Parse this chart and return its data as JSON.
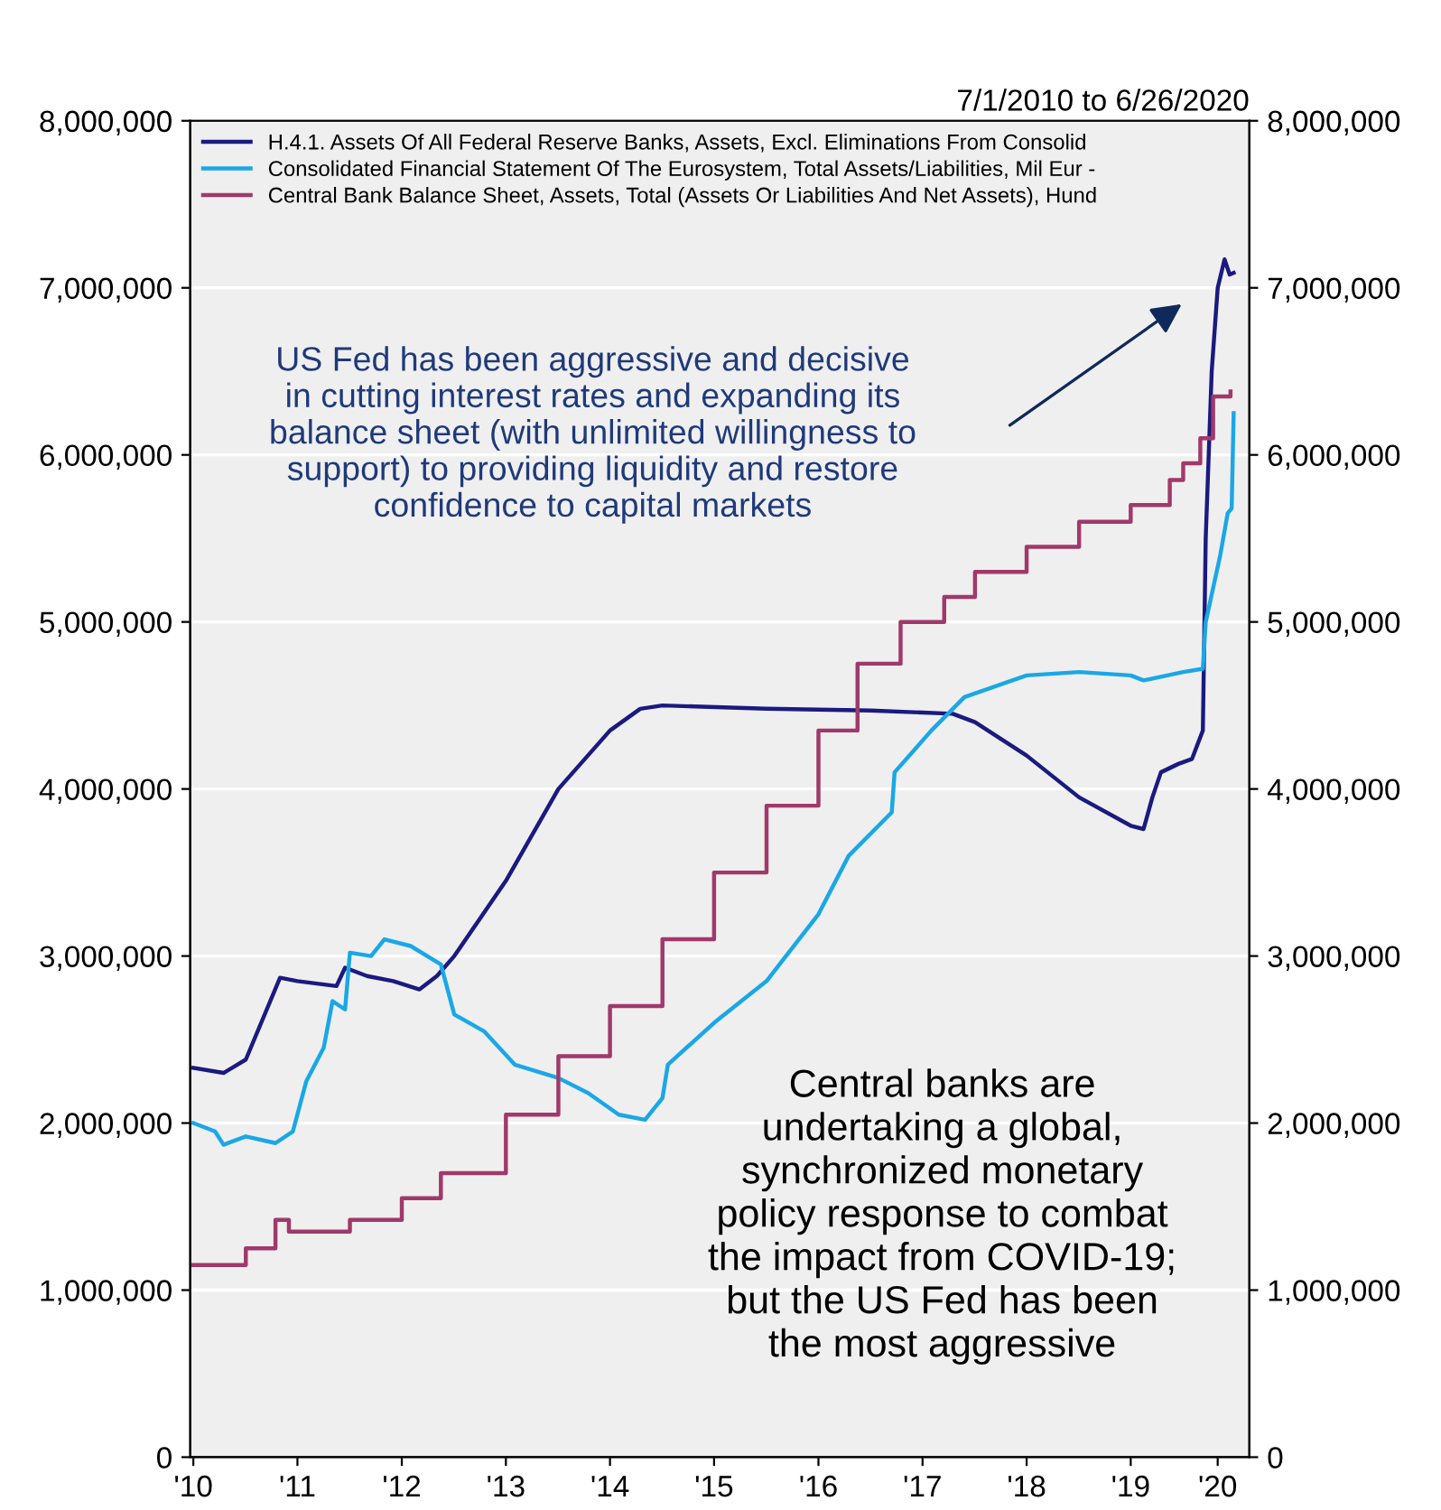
{
  "chart_data": {
    "type": "line",
    "annotations": [
      "7/1/2010 to 6/26/2020",
      "US Fed has been aggressive and decisive\nin cutting interest rates and expanding its\nbalance sheet (with unlimited willingness to\nsupport) to providing liquidity and restore\nconfidence to capital markets",
      "Central banks are\nundertaking a global,\nsynchronized monetary\npolicy response to combat\nthe impact from COVID-19;\nbut the US Fed has been\nthe most aggressive"
    ],
    "series": [
      {
        "name": "H.4.1. Assets Of All Federal Reserve Banks, Assets, Excl. Eliminations From Consolid",
        "color": "#1a1a80",
        "x": [
          "2010-07-01",
          "2010-10-15",
          "2011-01-01",
          "2011-05-01",
          "2011-07-01",
          "2011-11-15",
          "2011-12-15",
          "2012-03-01",
          "2012-06-01",
          "2012-09-01",
          "2012-11-01",
          "2013-01-01",
          "2013-07-01",
          "2014-01-01",
          "2014-07-01",
          "2014-10-15",
          "2015-01-01",
          "2016-01-01",
          "2017-01-01",
          "2017-10-15",
          "2018-01-01",
          "2018-07-01",
          "2019-01-01",
          "2019-07-01",
          "2019-08-15",
          "2019-09-15",
          "2019-10-15",
          "2019-12-15",
          "2020-02-01",
          "2020-03-10",
          "2020-03-20",
          "2020-04-10",
          "2020-05-01",
          "2020-05-25",
          "2020-06-12",
          "2020-06-26"
        ],
        "values": [
          2330000,
          2300000,
          2380000,
          2870000,
          2850000,
          2820000,
          2930000,
          2880000,
          2850000,
          2800000,
          2880000,
          3000000,
          3450000,
          4000000,
          4350000,
          4480000,
          4500000,
          4480000,
          4470000,
          4450000,
          4400000,
          4200000,
          3950000,
          3780000,
          3760000,
          3950000,
          4100000,
          4150000,
          4180000,
          4350000,
          5500000,
          6500000,
          7000000,
          7170000,
          7080000,
          7090000
        ]
      },
      {
        "name": "Consolidated Financial Statement Of The Eurosystem, Total Assets/Liabilities, Mil Eur -",
        "color": "#1aa7e6",
        "x": [
          "2010-07-01",
          "2010-09-15",
          "2010-10-15",
          "2011-01-01",
          "2011-04-15",
          "2011-06-15",
          "2011-08-01",
          "2011-10-01",
          "2011-11-01",
          "2011-12-15",
          "2012-01-01",
          "2012-03-15",
          "2012-05-01",
          "2012-08-01",
          "2012-11-15",
          "2013-01-01",
          "2013-04-15",
          "2013-08-01",
          "2014-01-01",
          "2014-04-15",
          "2014-08-01",
          "2014-11-01",
          "2015-01-01",
          "2015-01-20",
          "2015-07-01",
          "2016-01-01",
          "2016-07-01",
          "2016-10-15",
          "2017-03-15",
          "2017-03-25",
          "2017-08-01",
          "2017-11-25",
          "2018-07-01",
          "2019-01-01",
          "2019-07-01",
          "2019-08-15",
          "2020-01-01",
          "2020-03-10",
          "2020-03-20",
          "2020-05-10",
          "2020-06-05",
          "2020-06-19",
          "2020-06-26"
        ],
        "values": [
          2000000,
          1950000,
          1870000,
          1920000,
          1880000,
          1950000,
          2250000,
          2450000,
          2730000,
          2680000,
          3020000,
          3000000,
          3100000,
          3060000,
          2950000,
          2650000,
          2550000,
          2350000,
          2270000,
          2180000,
          2050000,
          2020000,
          2150000,
          2350000,
          2600000,
          2850000,
          3250000,
          3600000,
          3860000,
          4100000,
          4350000,
          4550000,
          4680000,
          4700000,
          4680000,
          4650000,
          4700000,
          4720000,
          5000000,
          5400000,
          5650000,
          5680000,
          6250000
        ]
      },
      {
        "name": "Central Bank Balance Sheet, Assets, Total (Assets Or Liabilities And Net Assets), Hund",
        "color": "#a0396a",
        "type": "step",
        "x": [
          "2010-07-01",
          "2011-01-01",
          "2011-04-15",
          "2011-06-01",
          "2012-01-01",
          "2012-07-01",
          "2012-11-15",
          "2013-07-01",
          "2014-01-01",
          "2014-07-01",
          "2015-01-01",
          "2015-07-01",
          "2016-01-01",
          "2016-07-01",
          "2016-11-15",
          "2017-04-15",
          "2017-09-15",
          "2018-01-01",
          "2018-07-01",
          "2019-01-01",
          "2019-07-01",
          "2019-11-15",
          "2020-01-01",
          "2020-03-01",
          "2020-04-15",
          "2020-06-15"
        ],
        "values": [
          1150000,
          1250000,
          1420000,
          1350000,
          1420000,
          1550000,
          1700000,
          2050000,
          2400000,
          2700000,
          3100000,
          3500000,
          3900000,
          4350000,
          4750000,
          5000000,
          5150000,
          5300000,
          5450000,
          5600000,
          5700000,
          5850000,
          5950000,
          6100000,
          6350000,
          6380000
        ]
      }
    ],
    "xlim": [
      "2010-06-20",
      "2020-08-20"
    ],
    "xticks": [
      {
        "value": "2010-07-01",
        "label": "'10"
      },
      {
        "value": "2011-07-01",
        "label": "'11"
      },
      {
        "value": "2012-07-01",
        "label": "'12"
      },
      {
        "value": "2013-07-01",
        "label": "'13"
      },
      {
        "value": "2014-07-01",
        "label": "'14"
      },
      {
        "value": "2015-07-01",
        "label": "'15"
      },
      {
        "value": "2016-07-01",
        "label": "'16"
      },
      {
        "value": "2017-07-01",
        "label": "'17"
      },
      {
        "value": "2018-07-01",
        "label": "'18"
      },
      {
        "value": "2019-07-01",
        "label": "'19"
      },
      {
        "value": "2020-05-01",
        "label": "'20"
      }
    ],
    "ylim": [
      0,
      8000000
    ],
    "yticks": [
      {
        "value": 0,
        "label": "0"
      },
      {
        "value": 1000000,
        "label": "1,000,000"
      },
      {
        "value": 2000000,
        "label": "2,000,000"
      },
      {
        "value": 3000000,
        "label": "3,000,000"
      },
      {
        "value": 4000000,
        "label": "4,000,000"
      },
      {
        "value": 5000000,
        "label": "5,000,000"
      },
      {
        "value": 6000000,
        "label": "6,000,000"
      },
      {
        "value": 7000000,
        "label": "7,000,000"
      },
      {
        "value": 8000000,
        "label": "8,000,000"
      }
    ],
    "y2lim": [
      0,
      8000000
    ],
    "y2ticks": [
      {
        "value": 0,
        "label": "0"
      },
      {
        "value": 1000000,
        "label": "1,000,000"
      },
      {
        "value": 2000000,
        "label": "2,000,000"
      },
      {
        "value": 3000000,
        "label": "3,000,000"
      },
      {
        "value": 4000000,
        "label": "4,000,000"
      },
      {
        "value": 5000000,
        "label": "5,000,000"
      },
      {
        "value": 6000000,
        "label": "6,000,000"
      },
      {
        "value": 7000000,
        "label": "7,000,000"
      },
      {
        "value": 8000000,
        "label": "8,000,000"
      }
    ],
    "grid": "y",
    "legend": "top left",
    "marker": "none",
    "line_style": "solid"
  }
}
